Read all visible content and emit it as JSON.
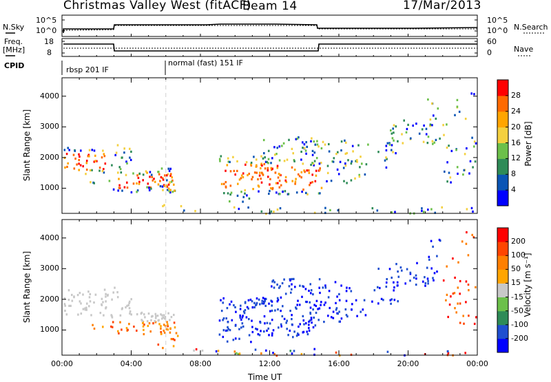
{
  "header": {
    "radar_title": "Christmas Valley West (fitACF)",
    "beam": "Beam 14",
    "date": "17/Mar/2013"
  },
  "status_panel": {
    "nsky_label": "N.Sky",
    "nsky_ticks": [
      "10^5",
      "10^0"
    ],
    "nsearch_label": "N.Search",
    "nsearch_ticks": [
      "10^5",
      "10^0"
    ],
    "freq_label": "Freq.",
    "freq_unit": "[MHz]",
    "freq_ticks": [
      "18",
      "8"
    ],
    "nave_label": "Nave",
    "nave_ticks": [
      "60",
      "0"
    ],
    "cpid_label": "CPID",
    "cpid_segments": [
      {
        "text": "rbsp 201 IF"
      },
      {
        "text": "normal (fast) 151 IF"
      }
    ]
  },
  "chart_data": [
    {
      "type": "heatmap",
      "ylabel": "Slant Range [km]",
      "yticks": [
        "4000",
        "3000",
        "2000",
        "1000"
      ],
      "ylim": [
        180,
        4600
      ],
      "xlim": [
        0,
        24
      ],
      "colorbar": {
        "label": "Power [dB]",
        "ticks": [
          "28",
          "24",
          "20",
          "16",
          "12",
          "8",
          "4"
        ],
        "colors": [
          "#0000ff",
          "#0a55b5",
          "#2e8b57",
          "#6cc04a",
          "#f4d03f",
          "#ffa500",
          "#ff6a00",
          "#ff0000"
        ]
      }
    },
    {
      "type": "heatmap",
      "ylabel": "Slant Range [km]",
      "yticks": [
        "4000",
        "3000",
        "2000",
        "1000"
      ],
      "ylim": [
        180,
        4600
      ],
      "xlim": [
        0,
        24
      ],
      "xlabel": "Time UT",
      "xticks": [
        "00:00",
        "04:00",
        "08:00",
        "12:00",
        "16:00",
        "20:00",
        "00:00"
      ],
      "colorbar": {
        "label": "Velocity [m s⁻¹]",
        "ticks": [
          "200",
          "100",
          "50",
          "15",
          "-15",
          "-50",
          "-100",
          "-200"
        ],
        "colors": [
          "#0000ff",
          "#1f4fd0",
          "#2e8b57",
          "#6cc04a",
          "#c8c8c8",
          "#ffa500",
          "#ff7f00",
          "#ff4500",
          "#ff0000"
        ]
      }
    }
  ]
}
